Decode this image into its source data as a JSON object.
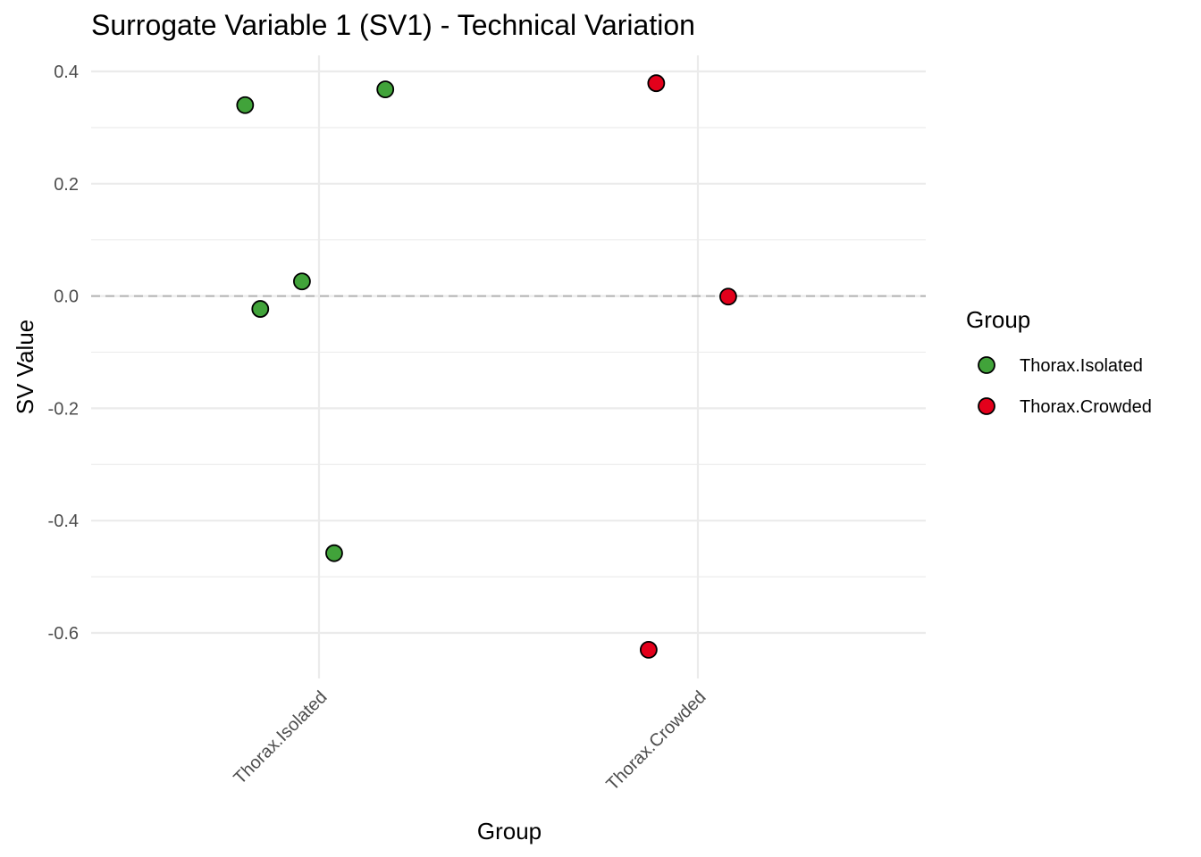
{
  "chart_data": {
    "type": "scatter",
    "title": "Surrogate Variable 1 (SV1) - Technical Variation",
    "xlabel": "Group",
    "ylabel": "SV Value",
    "categories": [
      "Thorax.Isolated",
      "Thorax.Crowded"
    ],
    "ylim": [
      -0.68,
      0.43
    ],
    "y_ticks": [
      0.4,
      0.2,
      0.0,
      -0.2,
      -0.4,
      -0.6
    ],
    "y_tick_labels": [
      "0.4",
      "0.2",
      "0.0",
      "-0.2",
      "-0.4",
      "-0.6"
    ],
    "reference_line": {
      "y": 0,
      "style": "dashed",
      "color": "#b3b3b3"
    },
    "legend": {
      "title": "Group",
      "position": "right"
    },
    "series": [
      {
        "name": "Thorax.Isolated",
        "color": "#41a33a",
        "points": [
          {
            "x": "Thorax.Isolated",
            "jitter": -0.195,
            "y": 0.34
          },
          {
            "x": "Thorax.Isolated",
            "jitter": 0.175,
            "y": 0.368
          },
          {
            "x": "Thorax.Isolated",
            "jitter": -0.045,
            "y": 0.026
          },
          {
            "x": "Thorax.Isolated",
            "jitter": -0.155,
            "y": -0.023
          },
          {
            "x": "Thorax.Isolated",
            "jitter": 0.04,
            "y": -0.458
          }
        ]
      },
      {
        "name": "Thorax.Crowded",
        "color": "#e3001b",
        "points": [
          {
            "x": "Thorax.Crowded",
            "jitter": -0.11,
            "y": 0.379
          },
          {
            "x": "Thorax.Crowded",
            "jitter": 0.08,
            "y": -0.001
          },
          {
            "x": "Thorax.Crowded",
            "jitter": -0.13,
            "y": -0.63
          }
        ]
      }
    ]
  }
}
